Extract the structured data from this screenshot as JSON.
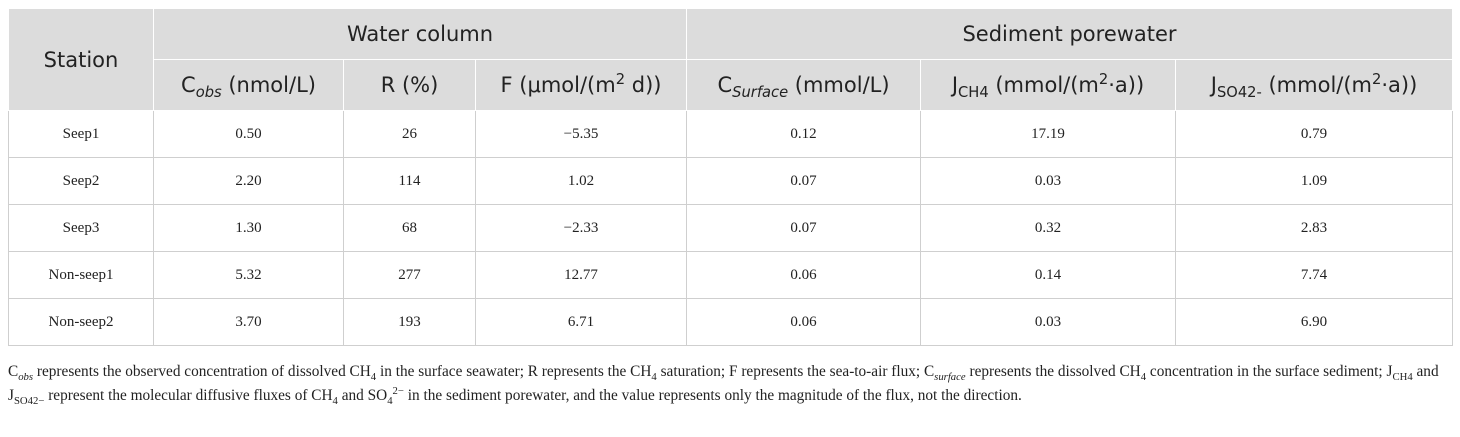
{
  "table": {
    "header": {
      "station": "Station",
      "groups": [
        "Water column",
        "Sediment porewater"
      ],
      "columns": [
        [
          {
            "text": "C"
          },
          {
            "text": "obs",
            "script": "sub-italic"
          },
          {
            "text": " (nmol/L)"
          }
        ],
        [
          {
            "text": "R (%)"
          }
        ],
        [
          {
            "text": "F (μmol/(m"
          },
          {
            "text": "2",
            "script": "sup"
          },
          {
            "text": " d))"
          }
        ],
        [
          {
            "text": "C"
          },
          {
            "text": "Surface",
            "script": "sub-italic"
          },
          {
            "text": " (mmol/L)"
          }
        ],
        [
          {
            "text": "J"
          },
          {
            "text": "CH4",
            "script": "sub"
          },
          {
            "text": " (mmol/(m"
          },
          {
            "text": "2",
            "script": "sup"
          },
          {
            "text": "·a))"
          }
        ],
        [
          {
            "text": "J"
          },
          {
            "text": "SO42-",
            "script": "sub"
          },
          {
            "text": " (mmol/(m"
          },
          {
            "text": "2",
            "script": "sup"
          },
          {
            "text": "·a))"
          }
        ]
      ]
    },
    "rows": [
      [
        "Seep1",
        "0.50",
        "26",
        "−5.35",
        "0.12",
        "17.19",
        "0.79"
      ],
      [
        "Seep2",
        "2.20",
        "114",
        "1.02",
        "0.07",
        "0.03",
        "1.09"
      ],
      [
        "Seep3",
        "1.30",
        "68",
        "−2.33",
        "0.07",
        "0.32",
        "2.83"
      ],
      [
        "Non-seep1",
        "5.32",
        "277",
        "12.77",
        "0.06",
        "0.14",
        "7.74"
      ],
      [
        "Non-seep2",
        "3.70",
        "193",
        "6.71",
        "0.06",
        "0.03",
        "6.90"
      ]
    ],
    "footnote": [
      {
        "text": "C"
      },
      {
        "text": "obs",
        "script": "sub-italic"
      },
      {
        "text": " represents the observed concentration of dissolved CH"
      },
      {
        "text": "4",
        "script": "sub"
      },
      {
        "text": " in the surface seawater; R represents the CH"
      },
      {
        "text": "4",
        "script": "sub"
      },
      {
        "text": " saturation; F represents the sea-to-air flux; C"
      },
      {
        "text": "surface",
        "script": "sub-italic"
      },
      {
        "text": " represents the dissolved CH"
      },
      {
        "text": "4",
        "script": "sub"
      },
      {
        "text": " concentration in the surface sediment; J"
      },
      {
        "text": "CH4",
        "script": "sub"
      },
      {
        "text": " and J"
      },
      {
        "text": "SO42−",
        "script": "sub"
      },
      {
        "text": " represent the molecular diffusive fluxes of CH"
      },
      {
        "text": "4",
        "script": "sub"
      },
      {
        "text": " and SO"
      },
      {
        "text": "4",
        "script": "sub"
      },
      {
        "text": "2−",
        "script": "sup"
      },
      {
        "text": " in the sediment porewater, and the value represents only the magnitude of the flux, not the direction."
      }
    ]
  }
}
